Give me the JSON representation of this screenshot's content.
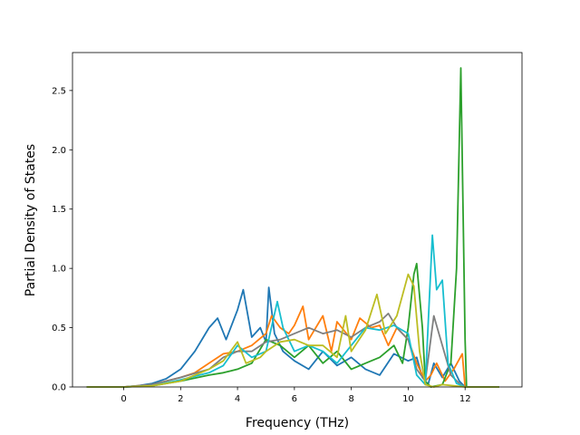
{
  "chart_data": {
    "type": "line",
    "title": "",
    "xlabel": "Frequency (THz)",
    "ylabel": "Partial Density of States",
    "xlim": [
      -1.8,
      14.0
    ],
    "ylim": [
      0,
      2.82
    ],
    "xticks": [
      0,
      2,
      4,
      6,
      8,
      10,
      12
    ],
    "xtick_labels": [
      "0",
      "2",
      "4",
      "6",
      "8",
      "10",
      "12"
    ],
    "yticks": [
      0.0,
      0.5,
      1.0,
      1.5,
      2.0,
      2.5
    ],
    "ytick_labels": [
      "0.0",
      "0.5",
      "1.0",
      "1.5",
      "2.0",
      "2.5"
    ],
    "grid": false,
    "legend": "none",
    "series": [
      {
        "color": "#1f77b4",
        "points": [
          [
            -1.3,
            0
          ],
          [
            0,
            0
          ],
          [
            0.5,
            0.01
          ],
          [
            1,
            0.03
          ],
          [
            1.5,
            0.07
          ],
          [
            2,
            0.15
          ],
          [
            2.5,
            0.3
          ],
          [
            3,
            0.5
          ],
          [
            3.3,
            0.58
          ],
          [
            3.6,
            0.4
          ],
          [
            4,
            0.65
          ],
          [
            4.2,
            0.82
          ],
          [
            4.5,
            0.42
          ],
          [
            4.8,
            0.5
          ],
          [
            5,
            0.38
          ],
          [
            5.1,
            0.84
          ],
          [
            5.3,
            0.45
          ],
          [
            5.6,
            0.3
          ],
          [
            6,
            0.22
          ],
          [
            6.5,
            0.15
          ],
          [
            7,
            0.3
          ],
          [
            7.5,
            0.18
          ],
          [
            8,
            0.25
          ],
          [
            8.5,
            0.15
          ],
          [
            9,
            0.1
          ],
          [
            9.5,
            0.28
          ],
          [
            10,
            0.22
          ],
          [
            10.3,
            0.25
          ],
          [
            10.5,
            0.08
          ],
          [
            10.7,
            0.02
          ],
          [
            10.9,
            0.2
          ],
          [
            11.2,
            0.08
          ],
          [
            11.5,
            0.2
          ],
          [
            11.8,
            0.05
          ],
          [
            12,
            0
          ],
          [
            13.2,
            0
          ]
        ]
      },
      {
        "color": "#ff7f0e",
        "points": [
          [
            -1.3,
            0
          ],
          [
            0,
            0
          ],
          [
            1,
            0.02
          ],
          [
            2,
            0.08
          ],
          [
            2.5,
            0.12
          ],
          [
            3,
            0.2
          ],
          [
            3.5,
            0.28
          ],
          [
            4,
            0.3
          ],
          [
            4.5,
            0.35
          ],
          [
            5,
            0.45
          ],
          [
            5.2,
            0.6
          ],
          [
            5.5,
            0.5
          ],
          [
            5.8,
            0.45
          ],
          [
            6,
            0.52
          ],
          [
            6.3,
            0.68
          ],
          [
            6.5,
            0.4
          ],
          [
            7,
            0.6
          ],
          [
            7.3,
            0.3
          ],
          [
            7.5,
            0.55
          ],
          [
            8,
            0.4
          ],
          [
            8.3,
            0.58
          ],
          [
            8.7,
            0.5
          ],
          [
            9,
            0.52
          ],
          [
            9.3,
            0.35
          ],
          [
            9.6,
            0.5
          ],
          [
            10,
            0.4
          ],
          [
            10.3,
            0.2
          ],
          [
            10.6,
            0.05
          ],
          [
            10.8,
            0.1
          ],
          [
            11,
            0.2
          ],
          [
            11.3,
            0.05
          ],
          [
            11.6,
            0.15
          ],
          [
            11.9,
            0.28
          ],
          [
            12,
            0
          ],
          [
            13.2,
            0
          ]
        ]
      },
      {
        "color": "#2ca02c",
        "points": [
          [
            -1.3,
            0
          ],
          [
            0,
            0
          ],
          [
            1,
            0.01
          ],
          [
            2,
            0.05
          ],
          [
            3,
            0.1
          ],
          [
            3.5,
            0.12
          ],
          [
            4,
            0.15
          ],
          [
            4.5,
            0.2
          ],
          [
            5,
            0.4
          ],
          [
            5.5,
            0.35
          ],
          [
            6,
            0.25
          ],
          [
            6.5,
            0.35
          ],
          [
            7,
            0.2
          ],
          [
            7.5,
            0.3
          ],
          [
            8,
            0.15
          ],
          [
            8.5,
            0.2
          ],
          [
            9,
            0.25
          ],
          [
            9.5,
            0.35
          ],
          [
            9.8,
            0.2
          ],
          [
            10,
            0.5
          ],
          [
            10.2,
            0.95
          ],
          [
            10.3,
            1.04
          ],
          [
            10.5,
            0.5
          ],
          [
            10.6,
            0.05
          ],
          [
            10.8,
            0
          ],
          [
            11.2,
            0.02
          ],
          [
            11.5,
            0.2
          ],
          [
            11.7,
            1.0
          ],
          [
            11.85,
            2.69
          ],
          [
            12,
            0.4
          ],
          [
            12.05,
            0
          ],
          [
            13.2,
            0
          ]
        ]
      },
      {
        "color": "#7f7f7f",
        "points": [
          [
            -1.3,
            0
          ],
          [
            0,
            0
          ],
          [
            1,
            0.02
          ],
          [
            2,
            0.08
          ],
          [
            3,
            0.15
          ],
          [
            3.5,
            0.25
          ],
          [
            4,
            0.3
          ],
          [
            4.5,
            0.3
          ],
          [
            5,
            0.38
          ],
          [
            5.5,
            0.4
          ],
          [
            6,
            0.45
          ],
          [
            6.5,
            0.5
          ],
          [
            7,
            0.45
          ],
          [
            7.5,
            0.48
          ],
          [
            8,
            0.42
          ],
          [
            8.5,
            0.5
          ],
          [
            9,
            0.55
          ],
          [
            9.3,
            0.62
          ],
          [
            9.6,
            0.5
          ],
          [
            10,
            0.4
          ],
          [
            10.3,
            0.15
          ],
          [
            10.6,
            0.05
          ],
          [
            10.9,
            0.6
          ],
          [
            11.2,
            0.35
          ],
          [
            11.5,
            0.1
          ],
          [
            11.8,
            0.03
          ],
          [
            12,
            0
          ],
          [
            13.2,
            0
          ]
        ]
      },
      {
        "color": "#17becf",
        "points": [
          [
            -1.3,
            0
          ],
          [
            0,
            0
          ],
          [
            1,
            0.01
          ],
          [
            2,
            0.06
          ],
          [
            3,
            0.12
          ],
          [
            3.5,
            0.18
          ],
          [
            4,
            0.35
          ],
          [
            4.5,
            0.25
          ],
          [
            5,
            0.3
          ],
          [
            5.4,
            0.72
          ],
          [
            5.6,
            0.5
          ],
          [
            6,
            0.3
          ],
          [
            6.5,
            0.35
          ],
          [
            7,
            0.3
          ],
          [
            7.5,
            0.2
          ],
          [
            8,
            0.35
          ],
          [
            8.5,
            0.5
          ],
          [
            9,
            0.48
          ],
          [
            9.5,
            0.52
          ],
          [
            10,
            0.45
          ],
          [
            10.3,
            0.1
          ],
          [
            10.6,
            0.02
          ],
          [
            10.85,
            1.28
          ],
          [
            11,
            0.82
          ],
          [
            11.2,
            0.9
          ],
          [
            11.4,
            0.2
          ],
          [
            11.7,
            0.03
          ],
          [
            12,
            0
          ],
          [
            13.2,
            0
          ]
        ]
      },
      {
        "color": "#bcbd22",
        "points": [
          [
            -1.3,
            0
          ],
          [
            0,
            0
          ],
          [
            1,
            0.01
          ],
          [
            2,
            0.05
          ],
          [
            3,
            0.15
          ],
          [
            3.5,
            0.22
          ],
          [
            4,
            0.38
          ],
          [
            4.3,
            0.2
          ],
          [
            4.8,
            0.25
          ],
          [
            5,
            0.3
          ],
          [
            5.5,
            0.38
          ],
          [
            6,
            0.4
          ],
          [
            6.5,
            0.35
          ],
          [
            7,
            0.35
          ],
          [
            7.5,
            0.25
          ],
          [
            7.8,
            0.6
          ],
          [
            8,
            0.3
          ],
          [
            8.5,
            0.48
          ],
          [
            8.9,
            0.78
          ],
          [
            9.2,
            0.45
          ],
          [
            9.6,
            0.6
          ],
          [
            10,
            0.95
          ],
          [
            10.2,
            0.85
          ],
          [
            10.4,
            0.3
          ],
          [
            10.6,
            0.02
          ],
          [
            10.9,
            0
          ],
          [
            11.2,
            0.02
          ],
          [
            11.6,
            0.01
          ],
          [
            12,
            0
          ],
          [
            13.2,
            0
          ]
        ]
      }
    ]
  }
}
